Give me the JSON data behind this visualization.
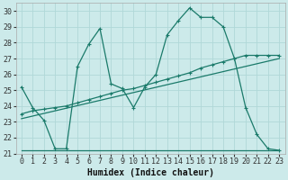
{
  "xlabel": "Humidex (Indice chaleur)",
  "ylabel": "",
  "bg_color": "#cceaea",
  "grid_color": "#b0d8d8",
  "line_color": "#1a7a6a",
  "xlim": [
    -0.5,
    23.5
  ],
  "ylim": [
    21,
    30.5
  ],
  "xticks": [
    0,
    1,
    2,
    3,
    4,
    5,
    6,
    7,
    8,
    9,
    10,
    11,
    12,
    13,
    14,
    15,
    16,
    17,
    18,
    19,
    20,
    21,
    22,
    23
  ],
  "yticks": [
    21,
    22,
    23,
    24,
    25,
    26,
    27,
    28,
    29,
    30
  ],
  "series1_x": [
    0,
    1,
    2,
    3,
    4,
    5,
    6,
    7,
    8,
    9,
    10,
    11,
    12,
    13,
    14,
    15,
    16,
    17,
    18,
    19,
    20,
    21,
    22,
    23
  ],
  "series1_y": [
    25.2,
    23.9,
    23.1,
    21.3,
    21.3,
    26.5,
    27.9,
    28.9,
    25.4,
    25.1,
    23.9,
    25.2,
    26.0,
    28.5,
    29.4,
    30.2,
    29.6,
    29.6,
    29.0,
    27.0,
    23.9,
    22.2,
    21.3,
    21.2
  ],
  "series2_x": [
    0,
    1,
    2,
    3,
    4,
    5,
    6,
    7,
    8,
    9,
    10,
    11,
    12,
    13,
    14,
    15,
    16,
    17,
    18,
    19,
    20,
    21,
    22,
    23
  ],
  "series2_y": [
    23.5,
    23.7,
    23.8,
    23.9,
    24.0,
    24.2,
    24.4,
    24.6,
    24.8,
    25.0,
    25.1,
    25.3,
    25.5,
    25.7,
    25.9,
    26.1,
    26.4,
    26.6,
    26.8,
    27.0,
    27.2,
    27.2,
    27.2,
    27.2
  ],
  "series3_x": [
    0,
    4,
    23
  ],
  "series3_y": [
    21.2,
    21.2,
    21.2
  ],
  "trend_x": [
    0,
    23
  ],
  "trend_y": [
    23.2,
    27.0
  ],
  "font_size_tick": 6,
  "font_size_label": 7
}
